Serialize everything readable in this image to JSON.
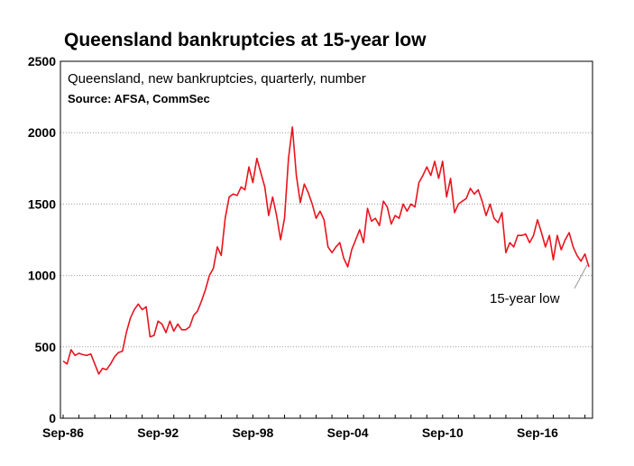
{
  "chart_data": {
    "type": "line",
    "title": "Queensland bankruptcies at 15-year low",
    "subtitle": "Queensland, new bankruptcies, quarterly, number",
    "source": "Source: AFSA, CommSec",
    "xlabel": "",
    "ylabel": "",
    "x_tick_labels": [
      "Sep-86",
      "Sep-92",
      "Sep-98",
      "Sep-04",
      "Sep-10",
      "Sep-16"
    ],
    "y_tick_labels": [
      "0",
      "500",
      "1000",
      "1500",
      "2000",
      "2500"
    ],
    "ylim": [
      0,
      2500
    ],
    "x_range": [
      "Sep-86",
      "Dec-19"
    ],
    "grid": "horizontal dotted",
    "annotation": "15-year low",
    "series": [
      {
        "color": "#e8141e",
        "x": [
          "Sep-86",
          "Dec-86",
          "Mar-87",
          "Jun-87",
          "Sep-87",
          "Dec-87",
          "Mar-88",
          "Jun-88",
          "Sep-88",
          "Dec-88",
          "Mar-89",
          "Jun-89",
          "Sep-89",
          "Dec-89",
          "Mar-90",
          "Jun-90",
          "Sep-90",
          "Dec-90",
          "Mar-91",
          "Jun-91",
          "Sep-91",
          "Dec-91",
          "Mar-92",
          "Jun-92",
          "Sep-92",
          "Dec-92",
          "Mar-93",
          "Jun-93",
          "Sep-93",
          "Dec-93",
          "Mar-94",
          "Jun-94",
          "Sep-94",
          "Dec-94",
          "Mar-95",
          "Jun-95",
          "Sep-95",
          "Dec-95",
          "Mar-96",
          "Jun-96",
          "Sep-96",
          "Dec-96",
          "Mar-97",
          "Jun-97",
          "Sep-97",
          "Dec-97",
          "Mar-98",
          "Jun-98",
          "Sep-98",
          "Dec-98",
          "Mar-99",
          "Jun-99",
          "Sep-99",
          "Dec-99",
          "Mar-00",
          "Jun-00",
          "Sep-00",
          "Dec-00",
          "Mar-01",
          "Jun-01",
          "Sep-01",
          "Dec-01",
          "Mar-02",
          "Jun-02",
          "Sep-02",
          "Dec-02",
          "Mar-03",
          "Jun-03",
          "Sep-03",
          "Dec-03",
          "Mar-04",
          "Jun-04",
          "Sep-04",
          "Dec-04",
          "Mar-05",
          "Jun-05",
          "Sep-05",
          "Dec-05",
          "Mar-06",
          "Jun-06",
          "Sep-06",
          "Dec-06",
          "Mar-07",
          "Jun-07",
          "Sep-07",
          "Dec-07",
          "Mar-08",
          "Jun-08",
          "Sep-08",
          "Dec-08",
          "Mar-09",
          "Jun-09",
          "Sep-09",
          "Dec-09",
          "Mar-10",
          "Jun-10",
          "Sep-10",
          "Dec-10",
          "Mar-11",
          "Jun-11",
          "Sep-11",
          "Dec-11",
          "Mar-12",
          "Jun-12",
          "Sep-12",
          "Dec-12",
          "Mar-13",
          "Jun-13",
          "Sep-13",
          "Dec-13",
          "Mar-14",
          "Jun-14",
          "Sep-14",
          "Dec-14",
          "Mar-15",
          "Jun-15",
          "Sep-15",
          "Dec-15",
          "Mar-16",
          "Jun-16",
          "Sep-16",
          "Dec-16",
          "Mar-17",
          "Jun-17",
          "Sep-17",
          "Dec-17",
          "Mar-18",
          "Jun-18",
          "Sep-18",
          "Dec-18",
          "Mar-19",
          "Jun-19",
          "Sep-19",
          "Dec-19"
        ],
        "values": [
          400,
          380,
          480,
          440,
          455,
          445,
          440,
          450,
          380,
          310,
          350,
          340,
          380,
          430,
          460,
          470,
          600,
          700,
          760,
          800,
          760,
          780,
          570,
          580,
          680,
          660,
          600,
          680,
          610,
          660,
          620,
          620,
          640,
          720,
          750,
          820,
          900,
          1000,
          1050,
          1200,
          1140,
          1400,
          1550,
          1570,
          1560,
          1620,
          1600,
          1760,
          1650,
          1820,
          1720,
          1620,
          1420,
          1550,
          1420,
          1250,
          1400,
          1820,
          2040,
          1700,
          1510,
          1640,
          1580,
          1500,
          1400,
          1450,
          1390,
          1200,
          1160,
          1200,
          1230,
          1120,
          1060,
          1180,
          1250,
          1320,
          1230,
          1470,
          1380,
          1400,
          1350,
          1520,
          1480,
          1360,
          1420,
          1400,
          1500,
          1450,
          1500,
          1480,
          1650,
          1700,
          1760,
          1700,
          1800,
          1680,
          1800,
          1550,
          1680,
          1440,
          1500,
          1520,
          1540,
          1610,
          1570,
          1600,
          1520,
          1420,
          1500,
          1400,
          1370,
          1440,
          1160,
          1230,
          1200,
          1280,
          1280,
          1290,
          1230,
          1280,
          1390,
          1300,
          1200,
          1280,
          1110,
          1280,
          1180,
          1250,
          1300,
          1200,
          1140,
          1100,
          1150,
          1060
        ]
      }
    ]
  }
}
